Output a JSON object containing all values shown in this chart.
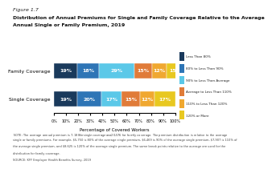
{
  "title_line1": "Figure 1.7",
  "title_line2": "Distribution of Annual Premiums for Single and Family Coverage Relative to the Average",
  "title_line3": "Annual Single or Family Premium, 2019",
  "categories": [
    "Single Coverage",
    "Family Coverage"
  ],
  "segments": [
    {
      "label": "Less Than 80%",
      "color": "#1a3a5c",
      "values": [
        19,
        19
      ]
    },
    {
      "label": "80% to Less Than 90%",
      "color": "#2e75b6",
      "values": [
        20,
        18
      ]
    },
    {
      "label": "90% to Less Than Average",
      "color": "#5bc8e8",
      "values": [
        17,
        29
      ]
    },
    {
      "label": "Average to Less Than 110%",
      "color": "#e07b39",
      "values": [
        15,
        15
      ]
    },
    {
      "label": "110% to Less Than 120%",
      "color": "#f0a830",
      "values": [
        12,
        12
      ]
    },
    {
      "label": "120% or More",
      "color": "#e8c820",
      "values": [
        17,
        15
      ]
    }
  ],
  "xlabel": "Percentage of Covered Workers",
  "note1": "NOTE: The average annual premium is $7,188 for single coverage and $20,576 for family coverage. The premium distribution is relative to the average",
  "note2": "single or family premiums. For example, $5,750 is 80% of the average single premium, $6,469 is 90% of the average single premium, $7,907 is 110% of",
  "note3": "the average single premium, and $8,625 is 120% of the average single premium. The same break points relative to the average are used for the",
  "note4": "distribution for family coverage.",
  "note5": "SOURCE: KFF Employer Health Benefits Survey, 2019",
  "background_color": "#ffffff",
  "bar_height": 0.55
}
